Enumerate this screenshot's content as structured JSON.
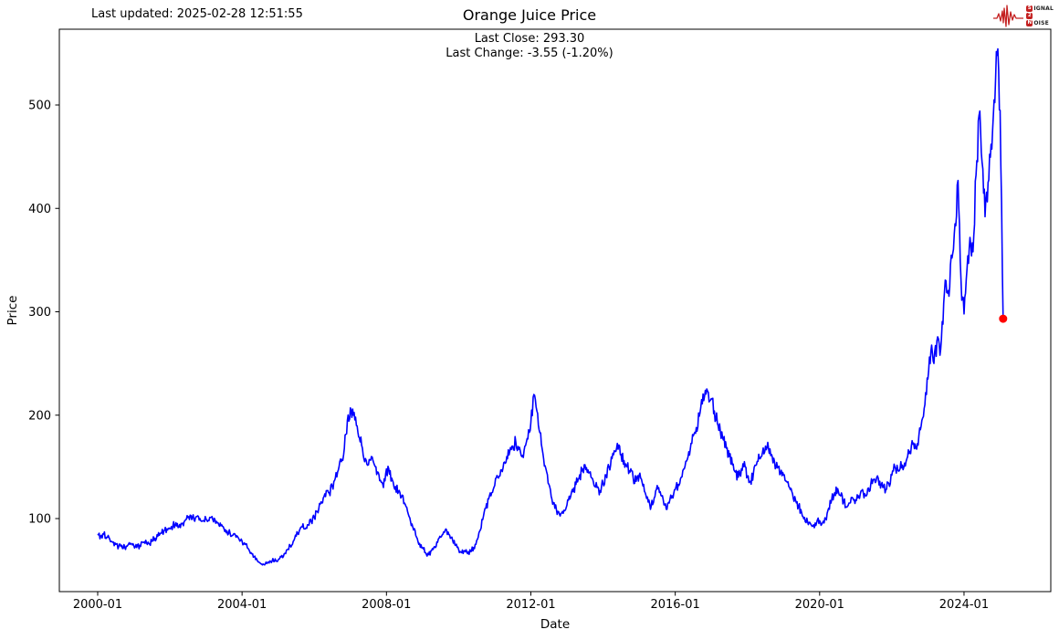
{
  "header": {
    "last_updated": "Last updated: 2025-02-28 12:51:55"
  },
  "logo": {
    "color": "#c42020",
    "line1_badge": "S",
    "line1_rest": "IGNAL",
    "line2_badge": "2",
    "line3_badge": "N",
    "line3_rest": "OISE"
  },
  "chart_data": {
    "type": "line",
    "title": "Orange Juice Price",
    "annotations": {
      "last_close": "Last Close: 293.30",
      "last_change": "Last Change: -3.55 (-1.20%)"
    },
    "xlabel": "Date",
    "ylabel": "Price",
    "x_tick_labels": [
      "2000-01",
      "2004-01",
      "2008-01",
      "2012-01",
      "2016-01",
      "2020-01",
      "2024-01"
    ],
    "y_tick_values": [
      100,
      200,
      300,
      400,
      500
    ],
    "ylim": [
      27.5,
      572.5
    ],
    "xlim": [
      "1998-12",
      "2026-06"
    ],
    "grid": false,
    "legend": "none",
    "line_color": "#0000ff",
    "marker": {
      "color": "#ff0000",
      "date": "2025-02",
      "value": 293.3
    },
    "last_close_value": 293.3,
    "last_change_value": -3.55,
    "last_change_pct": -1.2,
    "series": {
      "name": "Price",
      "start": "2000-01",
      "end": "2025-02",
      "monthly_by_year": {
        "2000": [
          85,
          83,
          85,
          82,
          80,
          77,
          75,
          73,
          74,
          72,
          74,
          76
        ],
        "2001": [
          74,
          72,
          74,
          77,
          79,
          76,
          78,
          81,
          83,
          86,
          88,
          90
        ],
        "2002": [
          90,
          93,
          96,
          92,
          95,
          98,
          101,
          103,
          99,
          102,
          100,
          98
        ],
        "2003": [
          100,
          98,
          102,
          99,
          96,
          93,
          90,
          88,
          86,
          84,
          82,
          80
        ],
        "2004": [
          78,
          75,
          71,
          67,
          63,
          60,
          57,
          56,
          58,
          57,
          59,
          61
        ],
        "2005": [
          60,
          63,
          66,
          70,
          74,
          78,
          83,
          88,
          92,
          90,
          94,
          97
        ],
        "2006": [
          101,
          107,
          114,
          120,
          127,
          125,
          131,
          139,
          147,
          155,
          168,
          195
        ],
        "2007": [
          207,
          200,
          190,
          178,
          168,
          158,
          152,
          160,
          152,
          145,
          137,
          130
        ],
        "2008": [
          148,
          143,
          137,
          131,
          126,
          121,
          115,
          107,
          97,
          89,
          82,
          76
        ],
        "2009": [
          72,
          67,
          65,
          69,
          73,
          77,
          82,
          87,
          89,
          84,
          79,
          74
        ],
        "2010": [
          70,
          67,
          69,
          66,
          68,
          72,
          79,
          88,
          99,
          110,
          119,
          125
        ],
        "2011": [
          132,
          140,
          147,
          154,
          160,
          165,
          170,
          174,
          167,
          160,
          170,
          177
        ],
        "2012": [
          193,
          220,
          204,
          183,
          163,
          148,
          133,
          119,
          110,
          107,
          105,
          108
        ],
        "2013": [
          113,
          119,
          126,
          133,
          139,
          146,
          152,
          147,
          140,
          132,
          130,
          127
        ],
        "2014": [
          134,
          142,
          150,
          158,
          165,
          167,
          162,
          156,
          150,
          145,
          140,
          136
        ],
        "2015": [
          142,
          135,
          125,
          116,
          112,
          120,
          132,
          126,
          118,
          109,
          115,
          122
        ],
        "2016": [
          128,
          133,
          140,
          148,
          157,
          167,
          180,
          188,
          199,
          211,
          224,
          222
        ],
        "2017": [
          216,
          204,
          192,
          184,
          176,
          168,
          160,
          152,
          145,
          140,
          148,
          155
        ],
        "2018": [
          141,
          136,
          144,
          152,
          158,
          164,
          170,
          168,
          162,
          155,
          149,
          144
        ],
        "2019": [
          142,
          136,
          130,
          124,
          118,
          112,
          106,
          101,
          97,
          95,
          94,
          96
        ],
        "2020": [
          98,
          96,
          100,
          110,
          118,
          125,
          129,
          122,
          117,
          111,
          115,
          120
        ],
        "2021": [
          118,
          122,
          127,
          124,
          129,
          133,
          138,
          140,
          136,
          130,
          128,
          134
        ],
        "2022": [
          142,
          150,
          147,
          155,
          150,
          158,
          165,
          172,
          168,
          180,
          195,
          210
        ],
        "2023": [
          235,
          262,
          250,
          272,
          258,
          288,
          330,
          315,
          352,
          385,
          427,
          330
        ],
        "2024": [
          298,
          342,
          372,
          358,
          432,
          490,
          445,
          392,
          425,
          462,
          505,
          548
        ],
        "2025": [
          495,
          293.3
        ]
      }
    }
  }
}
